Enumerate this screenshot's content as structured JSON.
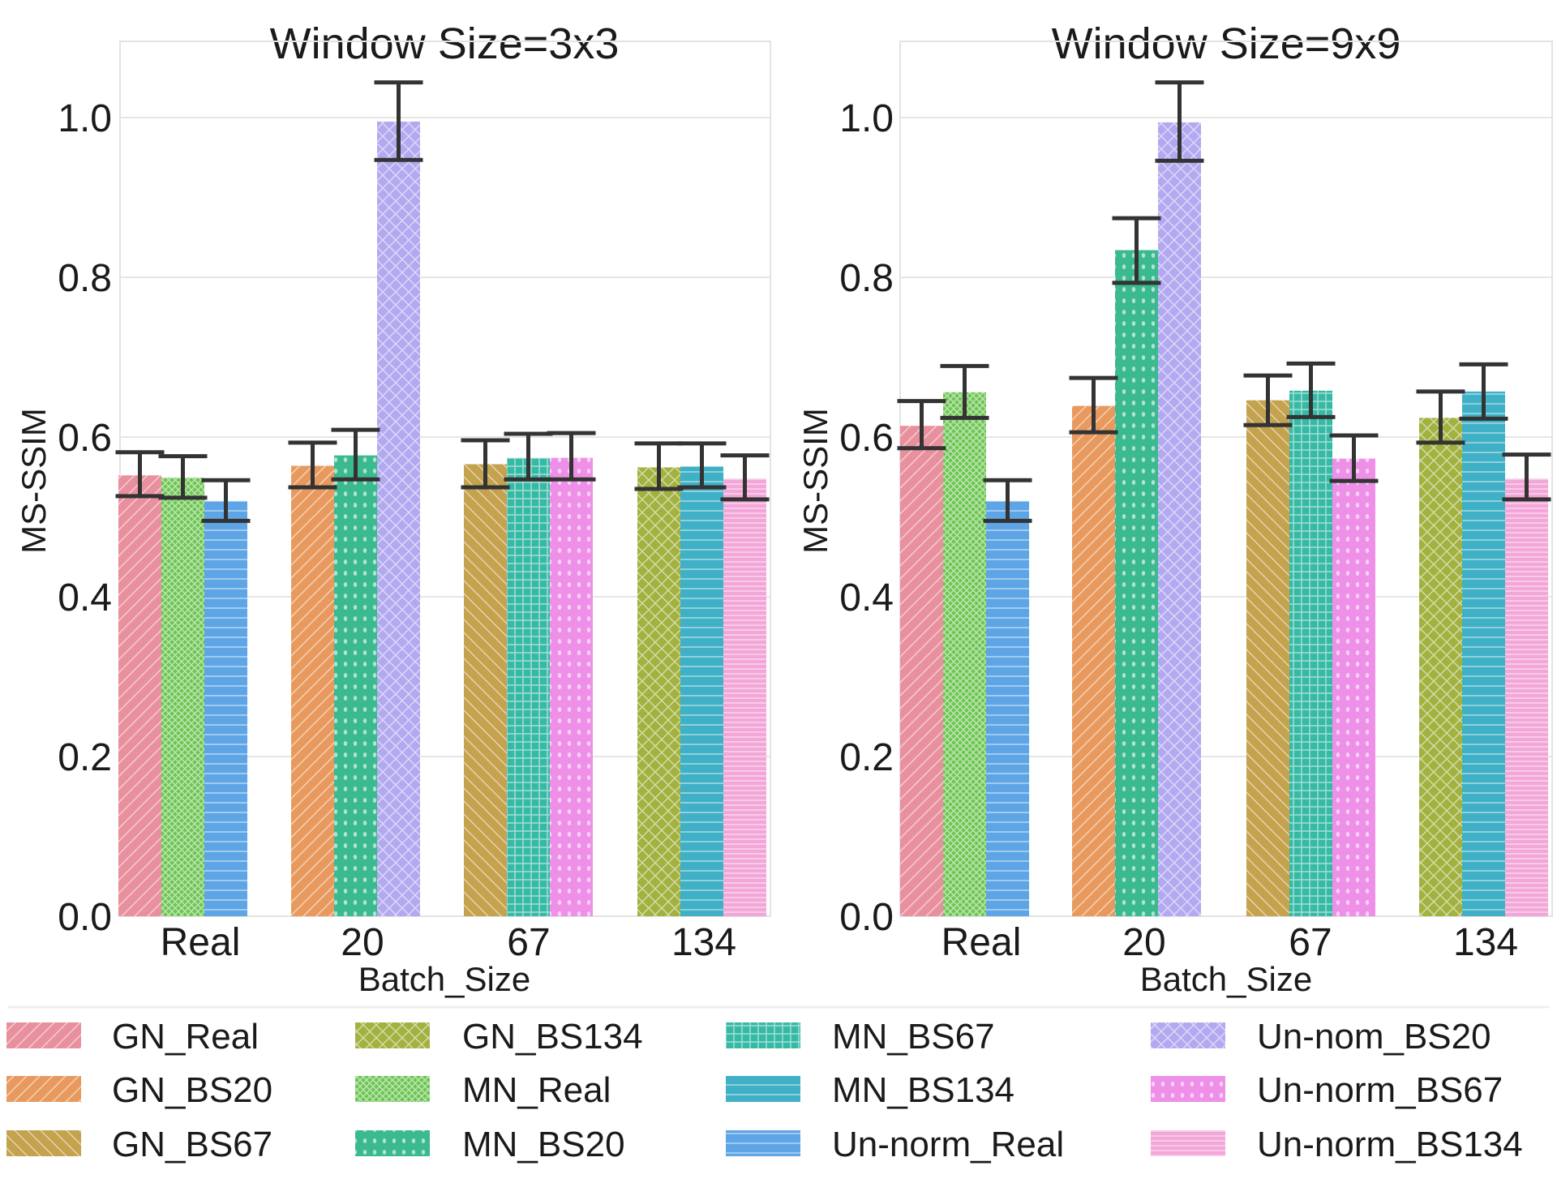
{
  "chart_data": [
    {
      "type": "bar",
      "title": "Window Size=3x3",
      "xlabel": "Batch_Size",
      "ylabel": "MS-SSIM",
      "ylim": [
        0,
        1.1
      ],
      "yticks": [
        0.0,
        0.2,
        0.4,
        0.6,
        0.8,
        1.0
      ],
      "ytick_labels": [
        "0.0",
        "0.2",
        "0.4",
        "0.6",
        "0.8",
        "1.0"
      ],
      "grid": true,
      "categories": [
        "Real",
        "20",
        "67",
        "134"
      ],
      "groups": [
        {
          "category": "Real",
          "bars": [
            {
              "series": "GN_Real",
              "value": 0.552,
              "err_low": 0.526,
              "err_high": 0.581
            },
            {
              "series": "MN_Real",
              "value": 0.549,
              "err_low": 0.524,
              "err_high": 0.576
            },
            {
              "series": "Un-norm_Real",
              "value": 0.52,
              "err_low": 0.495,
              "err_high": 0.546
            }
          ]
        },
        {
          "category": "20",
          "bars": [
            {
              "series": "GN_BS20",
              "value": 0.564,
              "err_low": 0.537,
              "err_high": 0.593
            },
            {
              "series": "MN_BS20",
              "value": 0.577,
              "err_low": 0.547,
              "err_high": 0.609
            },
            {
              "series": "Un-nom_BS20",
              "value": 0.995,
              "err_low": 0.947,
              "err_high": 1.044
            }
          ]
        },
        {
          "category": "67",
          "bars": [
            {
              "series": "GN_BS67",
              "value": 0.566,
              "err_low": 0.537,
              "err_high": 0.596
            },
            {
              "series": "MN_BS67",
              "value": 0.574,
              "err_low": 0.547,
              "err_high": 0.604
            },
            {
              "series": "Un-norm_BS67",
              "value": 0.574,
              "err_low": 0.547,
              "err_high": 0.605
            }
          ]
        },
        {
          "category": "134",
          "bars": [
            {
              "series": "GN_BS134",
              "value": 0.562,
              "err_low": 0.535,
              "err_high": 0.592
            },
            {
              "series": "MN_BS134",
              "value": 0.563,
              "err_low": 0.537,
              "err_high": 0.592
            },
            {
              "series": "Un-norm_BS134",
              "value": 0.548,
              "err_low": 0.522,
              "err_high": 0.577
            }
          ]
        }
      ]
    },
    {
      "type": "bar",
      "title": "Window Size=9x9",
      "xlabel": "Batch_Size",
      "ylabel": "MS-SSIM",
      "ylim": [
        0,
        1.1
      ],
      "yticks": [
        0.0,
        0.2,
        0.4,
        0.6,
        0.8,
        1.0
      ],
      "ytick_labels": [
        "0.0",
        "0.2",
        "0.4",
        "0.6",
        "0.8",
        "1.0"
      ],
      "grid": true,
      "categories": [
        "Real",
        "20",
        "67",
        "134"
      ],
      "groups": [
        {
          "category": "Real",
          "bars": [
            {
              "series": "GN_Real",
              "value": 0.614,
              "err_low": 0.586,
              "err_high": 0.645
            },
            {
              "series": "MN_Real",
              "value": 0.656,
              "err_low": 0.624,
              "err_high": 0.689
            },
            {
              "series": "Un-norm_Real",
              "value": 0.52,
              "err_low": 0.495,
              "err_high": 0.546
            }
          ]
        },
        {
          "category": "20",
          "bars": [
            {
              "series": "GN_BS20",
              "value": 0.639,
              "err_low": 0.606,
              "err_high": 0.674
            },
            {
              "series": "MN_BS20",
              "value": 0.834,
              "err_low": 0.793,
              "err_high": 0.874
            },
            {
              "series": "Un-nom_BS20",
              "value": 0.994,
              "err_low": 0.946,
              "err_high": 1.044
            }
          ]
        },
        {
          "category": "67",
          "bars": [
            {
              "series": "GN_BS67",
              "value": 0.646,
              "err_low": 0.615,
              "err_high": 0.677
            },
            {
              "series": "MN_BS67",
              "value": 0.658,
              "err_low": 0.625,
              "err_high": 0.692
            },
            {
              "series": "Un-norm_BS67",
              "value": 0.573,
              "err_low": 0.545,
              "err_high": 0.602
            }
          ]
        },
        {
          "category": "134",
          "bars": [
            {
              "series": "GN_BS134",
              "value": 0.624,
              "err_low": 0.593,
              "err_high": 0.657
            },
            {
              "series": "MN_BS134",
              "value": 0.657,
              "err_low": 0.623,
              "err_high": 0.691
            },
            {
              "series": "Un-norm_BS134",
              "value": 0.548,
              "err_low": 0.522,
              "err_high": 0.578
            }
          ]
        }
      ]
    }
  ],
  "legend": {
    "placement": "bottom",
    "columns": 4,
    "entries": [
      {
        "label": "GN_Real",
        "color": "#E8909E",
        "pattern": "diagonal"
      },
      {
        "label": "GN_BS20",
        "color": "#E89A5E",
        "pattern": "diagonal"
      },
      {
        "label": "GN_BS67",
        "color": "#C4A24E",
        "pattern": "backdiagonal"
      },
      {
        "label": "GN_BS134",
        "color": "#A2B13F",
        "pattern": "crosshatch-diag"
      },
      {
        "label": "MN_Real",
        "color": "#6CC552",
        "pattern": "dense-crosshatch"
      },
      {
        "label": "MN_BS20",
        "color": "#3BB98F",
        "pattern": "dots"
      },
      {
        "label": "MN_BS67",
        "color": "#36B9A5",
        "pattern": "grid"
      },
      {
        "label": "MN_BS134",
        "color": "#3FB0C5",
        "pattern": "horizontal"
      },
      {
        "label": "Un-norm_Real",
        "color": "#5EA5E6",
        "pattern": "horizontal"
      },
      {
        "label": "Un-nom_BS20",
        "color": "#B2A9F0",
        "pattern": "crosshatch-diag"
      },
      {
        "label": "Un-norm_BS67",
        "color": "#EE90E8",
        "pattern": "dots"
      },
      {
        "label": "Un-norm_BS134",
        "color": "#F3A6D8",
        "pattern": "fine-horizontal"
      }
    ]
  }
}
